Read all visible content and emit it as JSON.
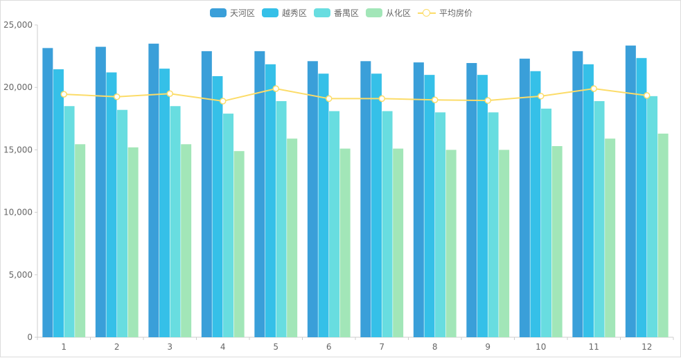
{
  "chart_data": {
    "type": "bar",
    "categories": [
      "1",
      "2",
      "3",
      "4",
      "5",
      "6",
      "7",
      "8",
      "9",
      "10",
      "11",
      "12"
    ],
    "series": [
      {
        "name": "天河区",
        "type": "bar",
        "color": "#3a9fd9",
        "values": [
          23150,
          23250,
          23500,
          22900,
          22900,
          22100,
          22100,
          22000,
          21950,
          22300,
          22900,
          23350
        ]
      },
      {
        "name": "越秀区",
        "type": "bar",
        "color": "#35c0e8",
        "values": [
          21450,
          21200,
          21500,
          20900,
          21850,
          21100,
          21100,
          21000,
          21000,
          21300,
          21850,
          22350
        ]
      },
      {
        "name": "番禺区",
        "type": "bar",
        "color": "#68dde0",
        "values": [
          18500,
          18200,
          18500,
          17900,
          18900,
          18100,
          18100,
          18000,
          18000,
          18300,
          18900,
          19300
        ]
      },
      {
        "name": "从化区",
        "type": "bar",
        "color": "#a2e6b8",
        "values": [
          15450,
          15200,
          15450,
          14900,
          15900,
          15100,
          15100,
          15000,
          15000,
          15300,
          15900,
          16300
        ]
      },
      {
        "name": "平均房价",
        "type": "line",
        "color": "#fcdc68",
        "values": [
          19450,
          19250,
          19500,
          18900,
          19900,
          19100,
          19100,
          19000,
          18950,
          19300,
          19900,
          19350
        ]
      }
    ],
    "ylim": [
      0,
      25000
    ],
    "yticks": [
      "0",
      "5,000",
      "10,000",
      "15,000",
      "20,000",
      "25,000"
    ],
    "ytick_values": [
      0,
      5000,
      10000,
      15000,
      20000,
      25000
    ],
    "grid": false,
    "legend_position": "top-center",
    "xlabel": "",
    "ylabel": ""
  }
}
